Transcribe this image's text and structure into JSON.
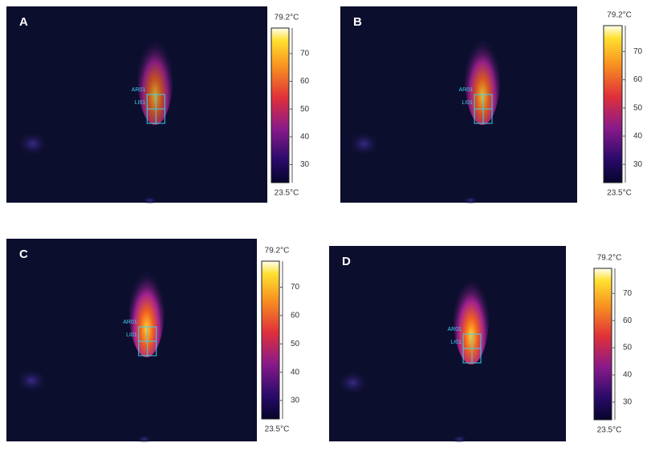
{
  "panels": [
    {
      "label": "A",
      "roi_labels": [
        "AR01",
        "LI01"
      ],
      "scale": {
        "max": {
          "value": 79.2,
          "label": "79.2°C"
        },
        "min": {
          "value": 23.5,
          "label": "23.5°C"
        },
        "ticks": [
          30,
          40,
          50,
          60,
          70
        ]
      }
    },
    {
      "label": "B",
      "roi_labels": [
        "AR01",
        "LI01"
      ],
      "scale": {
        "max": {
          "value": 79.2,
          "label": "79.2°C"
        },
        "min": {
          "value": 23.5,
          "label": "23.5°C"
        },
        "ticks": [
          30,
          40,
          50,
          60,
          70
        ]
      }
    },
    {
      "label": "C",
      "roi_labels": [
        "AR01",
        "LI01"
      ],
      "scale": {
        "max": {
          "value": 79.2,
          "label": "79.2°C"
        },
        "min": {
          "value": 23.5,
          "label": "23.5°C"
        },
        "ticks": [
          30,
          40,
          50,
          60,
          70
        ]
      }
    },
    {
      "label": "D",
      "roi_labels": [
        "AR01",
        "LI01"
      ],
      "scale": {
        "max": {
          "value": 79.2,
          "label": "79.2°C"
        },
        "min": {
          "value": 23.5,
          "label": "23.5°C"
        },
        "ticks": [
          30,
          40,
          50,
          60,
          70
        ]
      }
    }
  ]
}
